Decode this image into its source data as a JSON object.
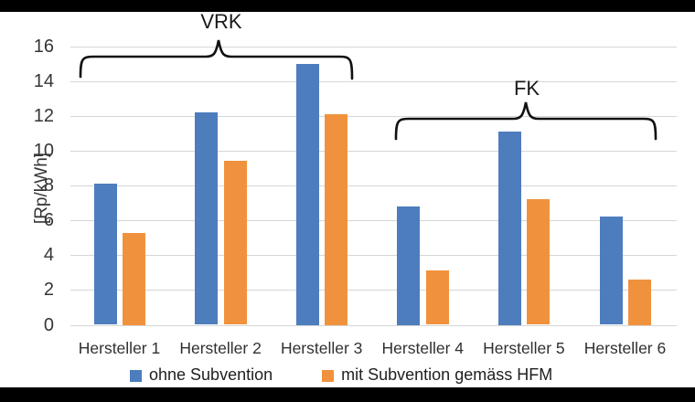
{
  "chart_data": {
    "type": "bar",
    "title": "",
    "ylabel": "[Rp/kWh]",
    "xlabel": "",
    "ylim": [
      0,
      16
    ],
    "ytick_step": 2,
    "grid": true,
    "legend_position": "bottom",
    "categories": [
      "Hersteller 1",
      "Hersteller 2",
      "Hersteller 3",
      "Hersteller 4",
      "Hersteller 5",
      "Hersteller 6"
    ],
    "series": [
      {
        "name": "ohne Subvention",
        "color": "#4d7dbd",
        "values": [
          8.1,
          12.2,
          15.0,
          6.8,
          11.1,
          6.2
        ]
      },
      {
        "name": "mit Subvention gemäss HFM",
        "color": "#f0923d",
        "values": [
          5.3,
          9.4,
          12.1,
          3.1,
          7.2,
          2.6
        ]
      }
    ],
    "annotations": [
      {
        "label": "VRK",
        "categories": [
          "Hersteller 1",
          "Hersteller 2",
          "Hersteller 3"
        ]
      },
      {
        "label": "FK",
        "categories": [
          "Hersteller 4",
          "Hersteller 5",
          "Hersteller 6"
        ]
      }
    ]
  }
}
